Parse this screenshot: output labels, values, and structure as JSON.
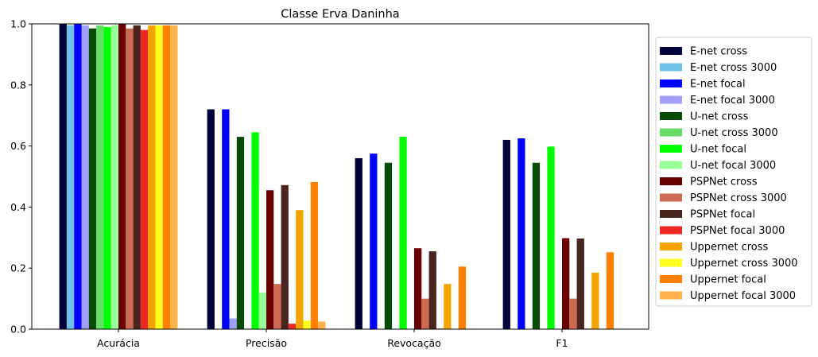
{
  "chart_data": {
    "type": "bar",
    "title": "Classe Erva Daninha",
    "xlabel": "",
    "ylabel": "",
    "ylim": [
      0,
      1.0
    ],
    "yticks": [
      "0.0",
      "0.2",
      "0.4",
      "0.6",
      "0.8",
      "1.0"
    ],
    "categories": [
      "Acurácia",
      "Precisão",
      "Revocação",
      "F1"
    ],
    "legend_position": "right",
    "grid": false,
    "series": [
      {
        "name": "E-net cross",
        "color": "#00003a",
        "values": [
          1.0,
          0.72,
          0.56,
          0.62
        ]
      },
      {
        "name": "E-net cross 3000",
        "color": "#6ec1e4",
        "values": [
          0.995,
          0.0,
          0.0,
          0.0
        ]
      },
      {
        "name": "E-net focal",
        "color": "#0000ff",
        "values": [
          1.0,
          0.72,
          0.575,
          0.625
        ]
      },
      {
        "name": "E-net focal 3000",
        "color": "#a19ff7",
        "values": [
          0.995,
          0.035,
          0.0,
          0.0
        ]
      },
      {
        "name": "U-net cross",
        "color": "#074b07",
        "values": [
          0.985,
          0.63,
          0.545,
          0.545
        ]
      },
      {
        "name": "U-net cross 3000",
        "color": "#66dd66",
        "values": [
          0.995,
          0.0,
          0.0,
          0.0
        ]
      },
      {
        "name": "U-net focal",
        "color": "#00ff00",
        "values": [
          0.99,
          0.645,
          0.63,
          0.598
        ]
      },
      {
        "name": "U-net focal 3000",
        "color": "#99ff99",
        "values": [
          0.995,
          0.12,
          0.0,
          0.0
        ]
      },
      {
        "name": "PSPNet cross",
        "color": "#6b0000",
        "values": [
          1.0,
          0.455,
          0.265,
          0.298
        ]
      },
      {
        "name": "PSPNet cross 3000",
        "color": "#cc6b52",
        "values": [
          0.985,
          0.148,
          0.1,
          0.1
        ]
      },
      {
        "name": "PSPNet focal",
        "color": "#4a2520",
        "values": [
          0.995,
          0.472,
          0.255,
          0.297
        ]
      },
      {
        "name": "PSPNet focal 3000",
        "color": "#ee2a24",
        "values": [
          0.98,
          0.018,
          0.002,
          0.002
        ]
      },
      {
        "name": "Uppernet cross",
        "color": "#f5a300",
        "values": [
          0.995,
          0.39,
          0.148,
          0.185
        ]
      },
      {
        "name": "Uppernet cross 3000",
        "color": "#ffff22",
        "values": [
          0.995,
          0.028,
          0.0,
          0.0
        ]
      },
      {
        "name": "Uppernet focal",
        "color": "#ff8000",
        "values": [
          0.995,
          0.482,
          0.205,
          0.252
        ]
      },
      {
        "name": "Uppernet focal 3000",
        "color": "#ffb24a",
        "values": [
          0.995,
          0.025,
          0.0,
          0.0
        ]
      }
    ]
  }
}
